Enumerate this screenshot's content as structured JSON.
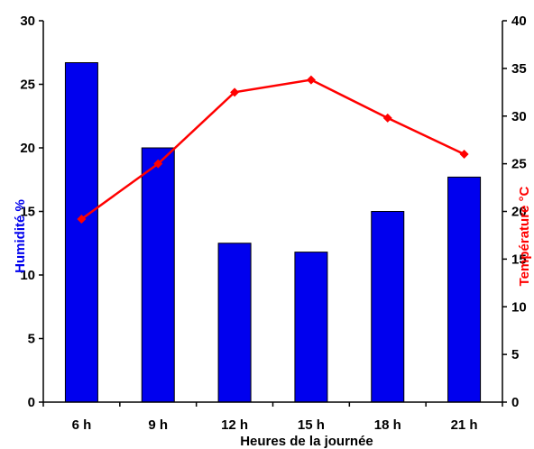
{
  "chart_data": {
    "type": "bar",
    "categories": [
      "6 h",
      "9 h",
      "12 h",
      "15 h",
      "18 h",
      "21 h"
    ],
    "xlabel": "Heures de la journée",
    "series": [
      {
        "name": "Humidité %",
        "kind": "bar",
        "axis": "left",
        "color": "#0000ee",
        "values": [
          26.7,
          20.0,
          12.5,
          11.8,
          15.0,
          17.7
        ]
      },
      {
        "name": "Température °C",
        "kind": "line",
        "axis": "right",
        "color": "#ff0000",
        "values": [
          19.2,
          25.0,
          32.5,
          33.8,
          29.8,
          26.0
        ]
      }
    ],
    "y_left": {
      "label": "Humidité %",
      "lim": [
        0,
        30
      ],
      "ticks": [
        0,
        5,
        10,
        15,
        20,
        25,
        30
      ],
      "color": "#0000ee"
    },
    "y_right": {
      "label": "Température °C",
      "lim": [
        0,
        40
      ],
      "ticks": [
        0,
        5,
        10,
        15,
        20,
        25,
        30,
        35,
        40
      ],
      "color": "#ff0000"
    },
    "grid": false,
    "legend": "none"
  }
}
